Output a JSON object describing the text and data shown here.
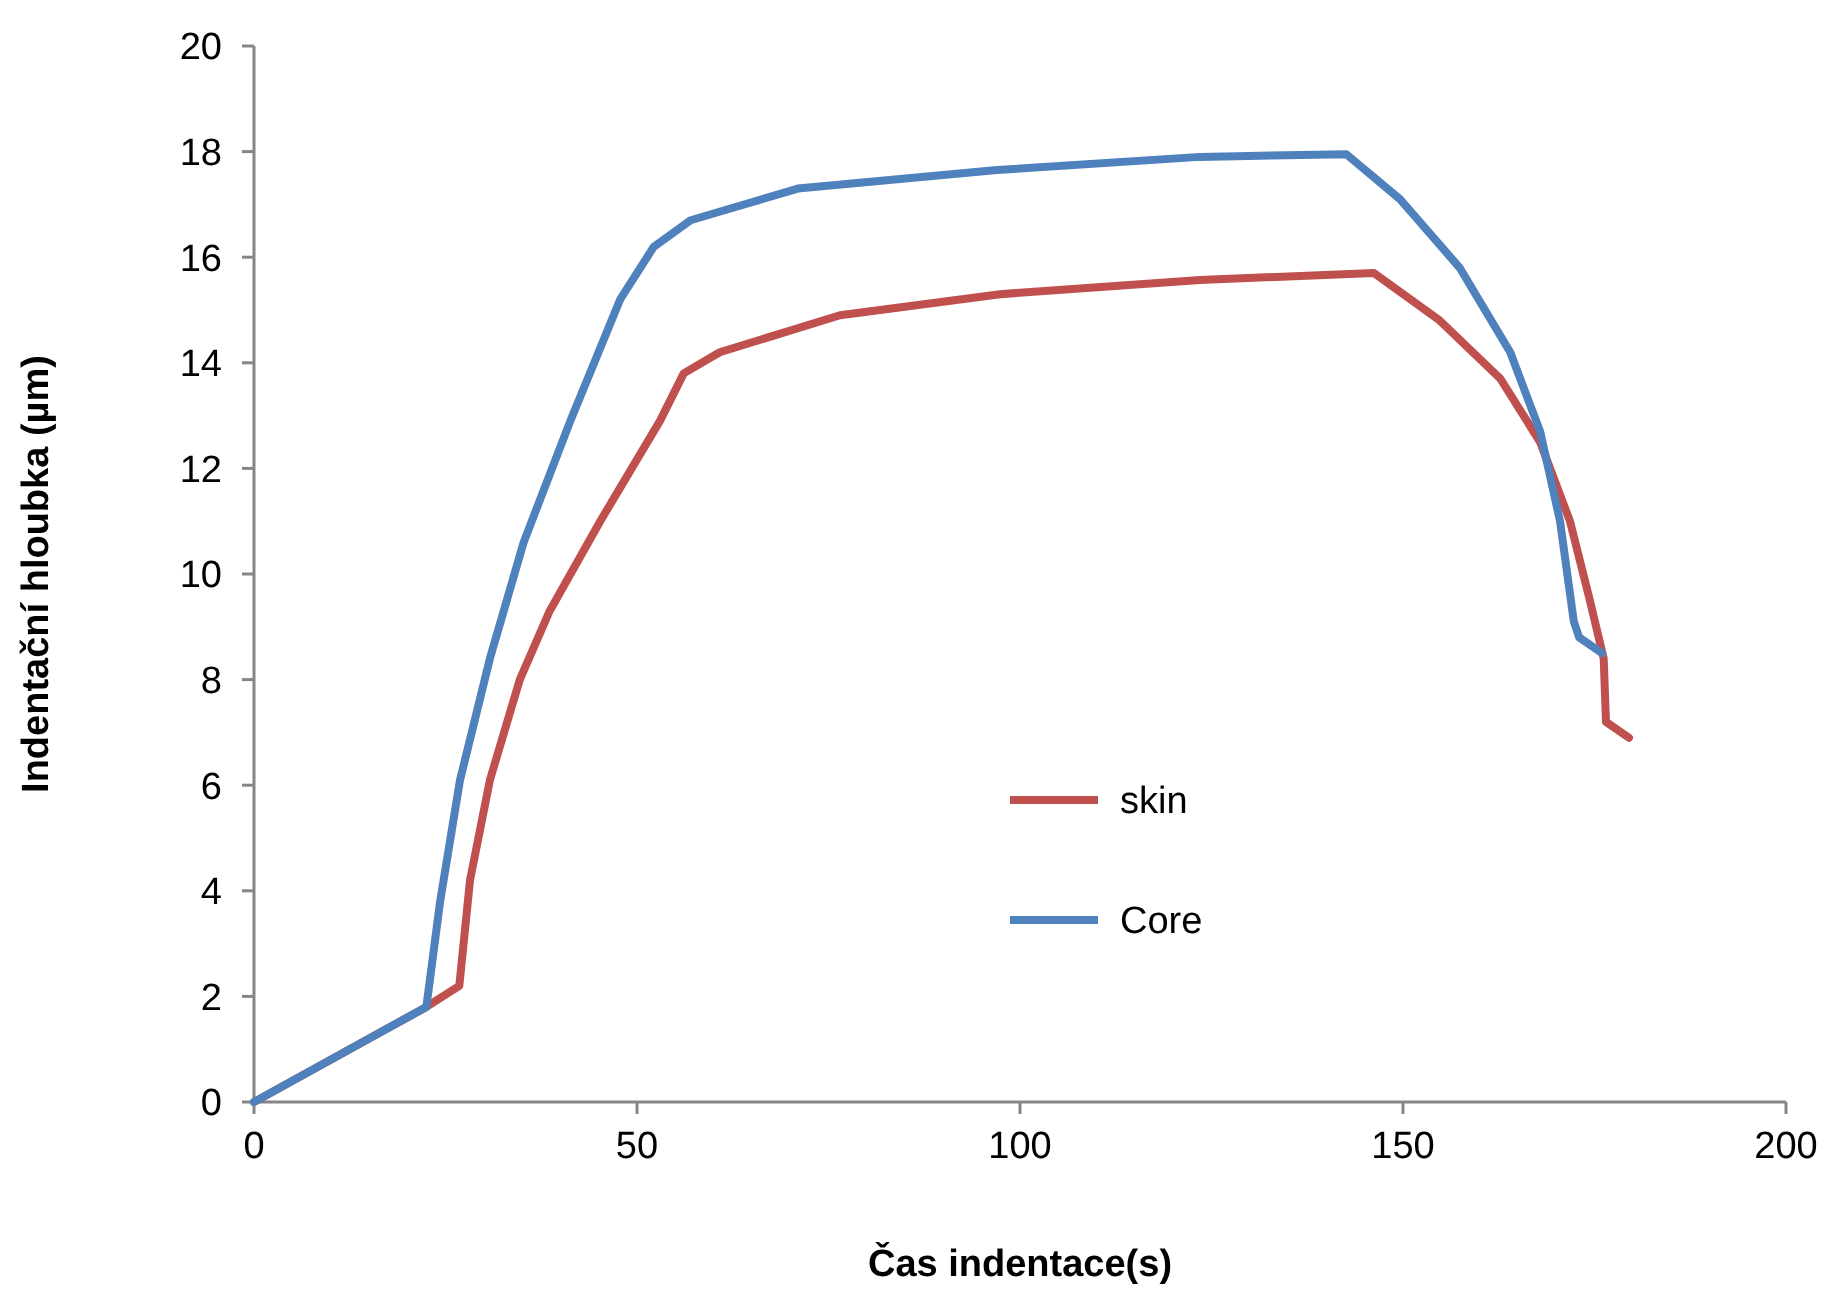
{
  "chart_data": {
    "type": "line",
    "xlabel": "Čas  indentace(s)",
    "ylabel": "Indentační hloubka (µm)",
    "xlim": [
      0,
      200
    ],
    "xticks": [
      0,
      50,
      100,
      150,
      200
    ],
    "ylim": [
      0,
      20
    ],
    "yticks": [
      0,
      2,
      4,
      6,
      8,
      10,
      12,
      14,
      16,
      18,
      20
    ],
    "grid": false,
    "legend": "bottom",
    "marker": "none",
    "line_style": "solid",
    "series": [
      {
        "name": "skin",
        "color": "#c0504d",
        "x": [
          0,
          22.5,
          26.8,
          28.2,
          30.8,
          34.7,
          38.6,
          45.2,
          53,
          56.1,
          60.8,
          76.5,
          97.4,
          123.5,
          146.2,
          154.8,
          162.7,
          167.9,
          171.8,
          174.4,
          176.2,
          176.5,
          179.5
        ],
        "values": [
          0,
          1.8,
          2.2,
          4.2,
          6.1,
          8.0,
          9.3,
          11.0,
          12.9,
          13.8,
          14.2,
          14.9,
          15.3,
          15.57,
          15.7,
          14.8,
          13.7,
          12.5,
          11.0,
          9.5,
          8.4,
          7.2,
          6.9
        ]
      },
      {
        "name": "Core",
        "color": "#4f81bd",
        "x": [
          0,
          22.5,
          24.3,
          26.9,
          30.8,
          35.2,
          41.3,
          47.8,
          52.2,
          57,
          71,
          97,
          123.5,
          142.6,
          149.6,
          157.4,
          164,
          167.9,
          170.5,
          172.3,
          173,
          176
        ],
        "values": [
          0,
          1.8,
          3.8,
          6.1,
          8.4,
          10.6,
          12.9,
          15.2,
          16.2,
          16.7,
          17.3,
          17.65,
          17.9,
          17.95,
          17.1,
          15.8,
          14.2,
          12.7,
          11.0,
          9.1,
          8.8,
          8.5
        ]
      }
    ]
  }
}
